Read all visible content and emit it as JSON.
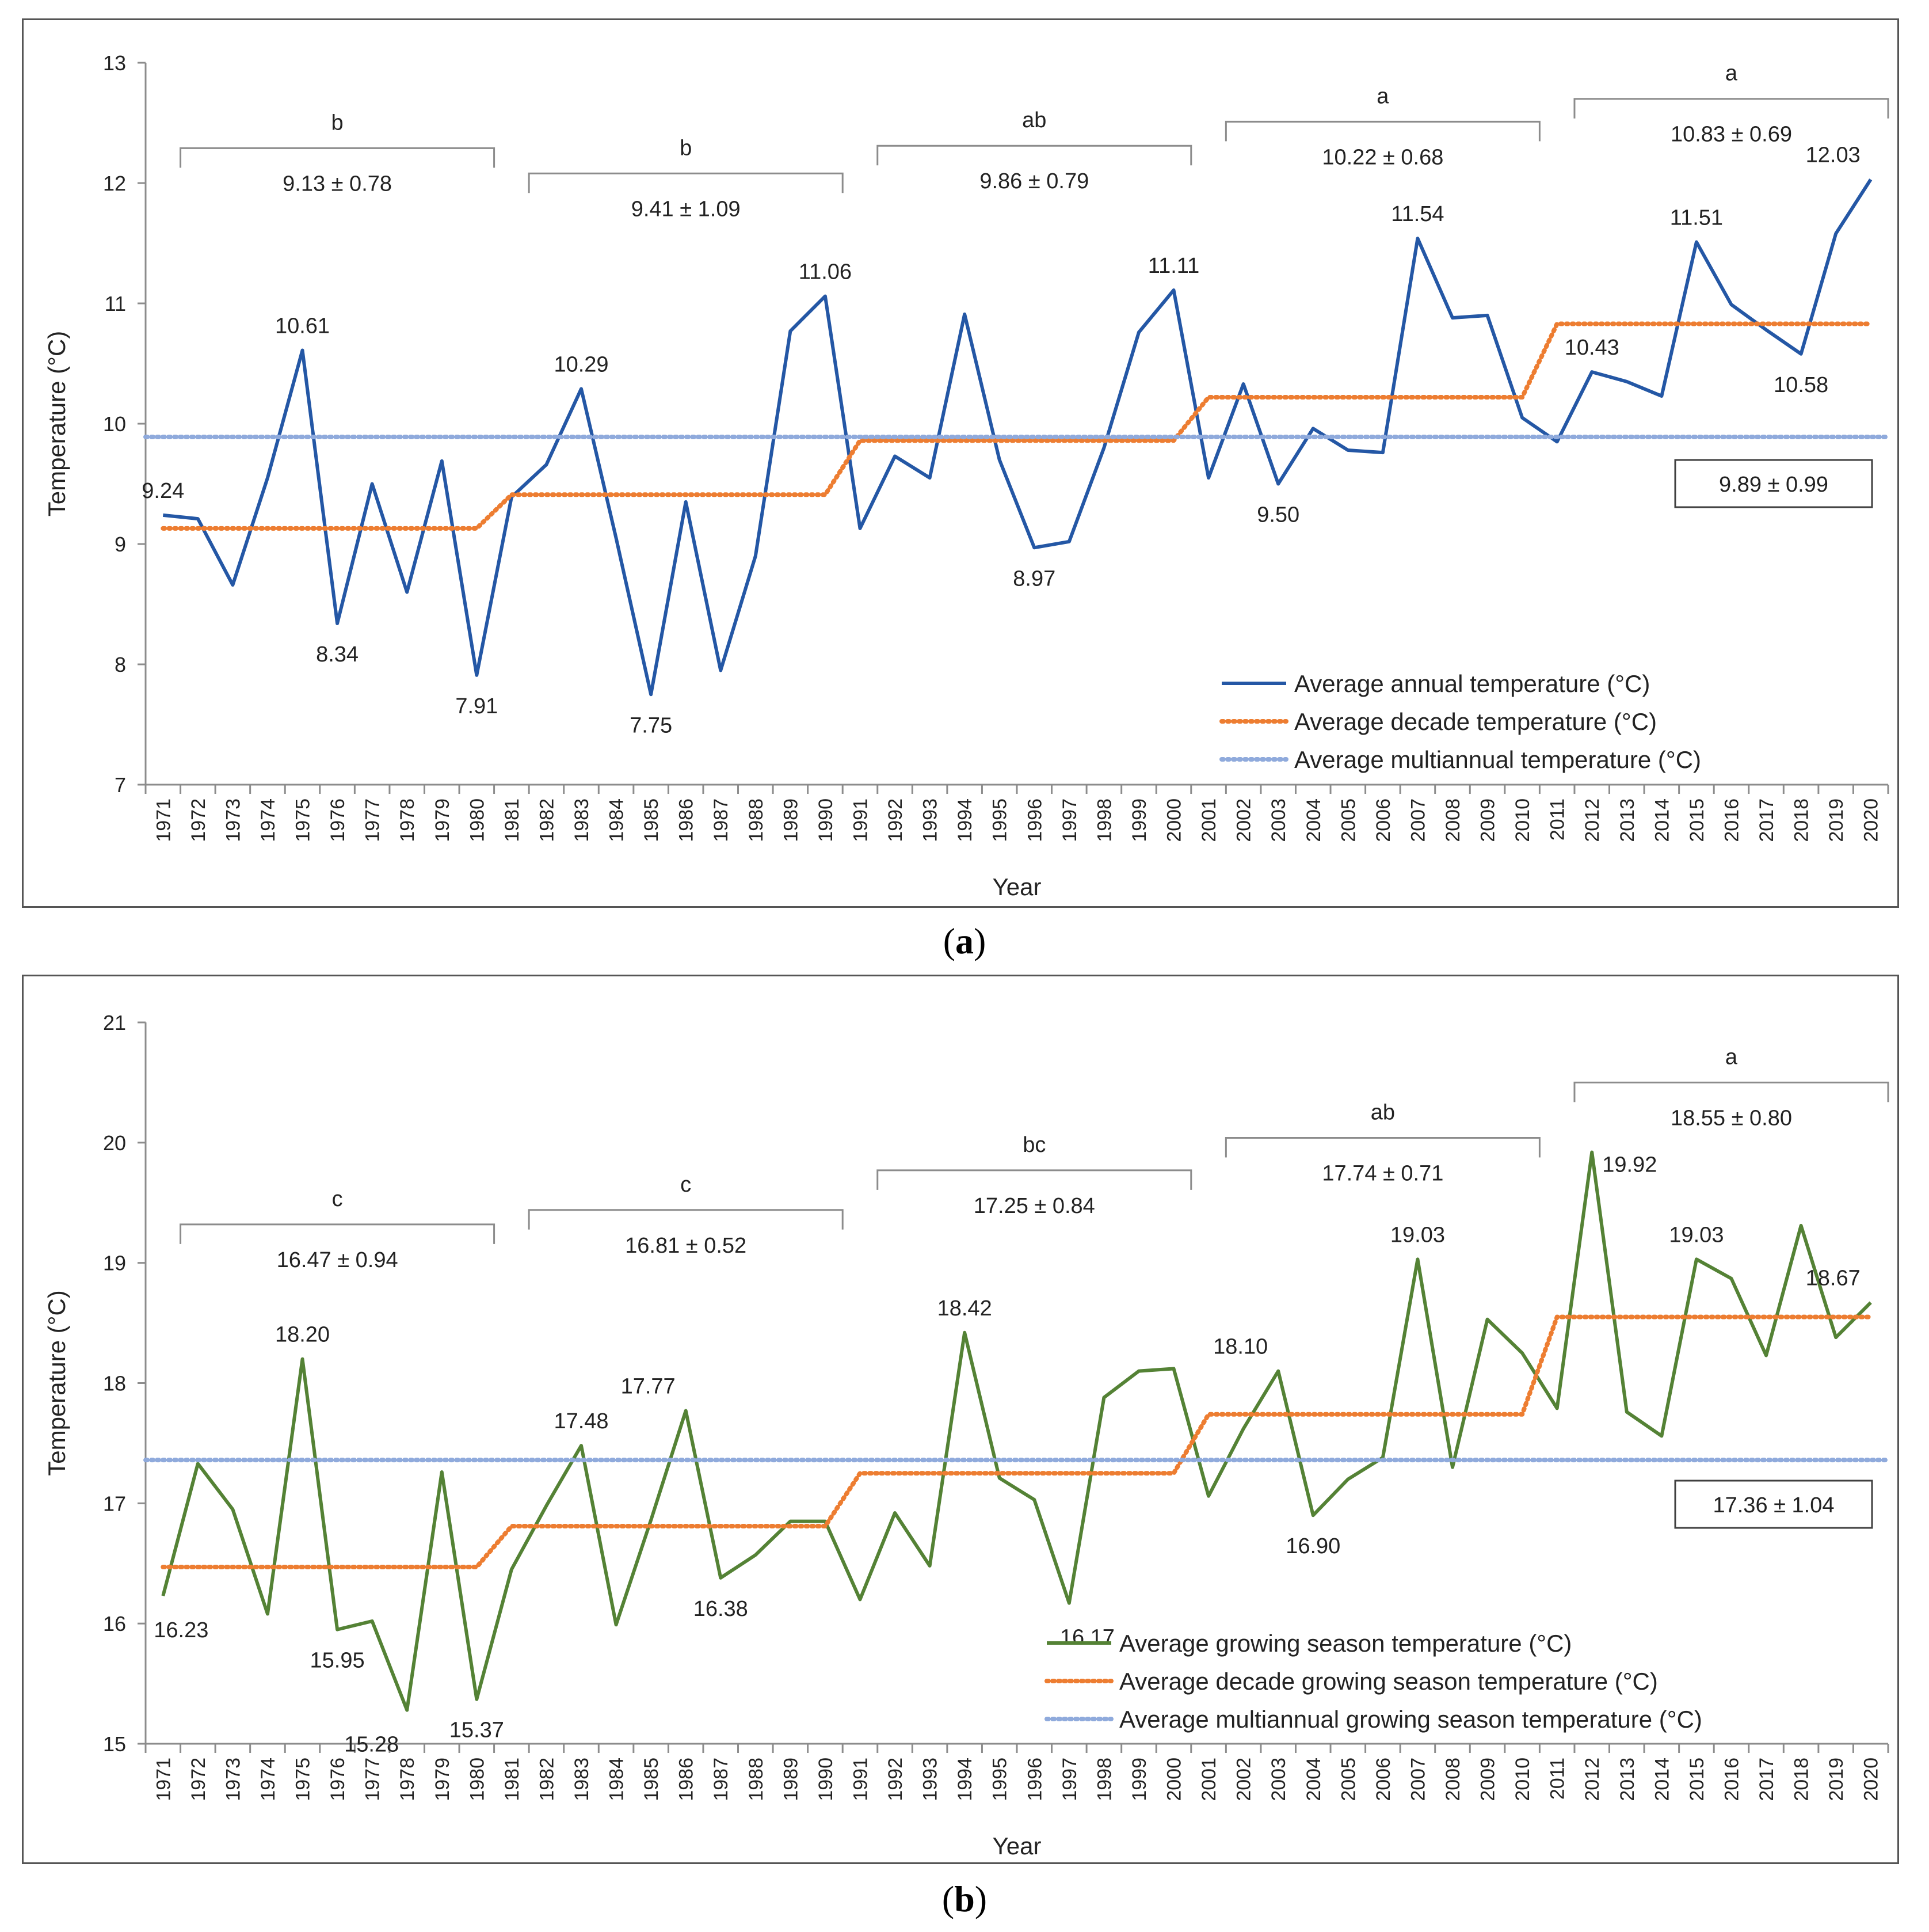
{
  "chart_data": [
    {
      "panel": "a",
      "type": "line",
      "caption_letter": "a",
      "xlabel": "Year",
      "ylabel": "Temperature (°C)",
      "ylim": [
        7,
        13
      ],
      "yticks": [
        7,
        8,
        9,
        10,
        11,
        12,
        13
      ],
      "categories": [
        "1971",
        "1972",
        "1973",
        "1974",
        "1975",
        "1976",
        "1977",
        "1978",
        "1979",
        "1980",
        "1981",
        "1982",
        "1983",
        "1984",
        "1985",
        "1986",
        "1987",
        "1988",
        "1989",
        "1990",
        "1991",
        "1992",
        "1993",
        "1994",
        "1995",
        "1996",
        "1997",
        "1998",
        "1999",
        "2000",
        "2001",
        "2002",
        "2003",
        "2004",
        "2005",
        "2006",
        "2007",
        "2008",
        "2009",
        "2010",
        "2011",
        "2012",
        "2013",
        "2014",
        "2015",
        "2016",
        "2017",
        "2018",
        "2019",
        "2020"
      ],
      "series": [
        {
          "name": "Average annual temperature (°C)",
          "style": "solid",
          "color": "#2457a5",
          "values": [
            9.24,
            9.21,
            8.66,
            9.55,
            10.61,
            8.34,
            9.5,
            8.6,
            9.69,
            7.91,
            9.39,
            9.66,
            10.29,
            9.05,
            7.75,
            9.35,
            7.95,
            8.9,
            10.77,
            11.06,
            9.13,
            9.73,
            9.55,
            10.91,
            9.7,
            8.97,
            9.02,
            9.8,
            10.76,
            11.11,
            9.55,
            10.33,
            9.5,
            9.96,
            9.78,
            9.76,
            11.54,
            10.88,
            10.9,
            10.05,
            9.85,
            10.43,
            10.35,
            10.23,
            11.51,
            10.99,
            10.78,
            10.58,
            11.58,
            12.03
          ]
        },
        {
          "name": "Average decade temperature (°C)",
          "style": "dotted",
          "color": "#ed7d31",
          "values": [
            9.13,
            9.13,
            9.13,
            9.13,
            9.13,
            9.13,
            9.13,
            9.13,
            9.13,
            9.13,
            9.41,
            9.41,
            9.41,
            9.41,
            9.41,
            9.41,
            9.41,
            9.41,
            9.41,
            9.41,
            9.86,
            9.86,
            9.86,
            9.86,
            9.86,
            9.86,
            9.86,
            9.86,
            9.86,
            9.86,
            10.22,
            10.22,
            10.22,
            10.22,
            10.22,
            10.22,
            10.22,
            10.22,
            10.22,
            10.22,
            10.83,
            10.83,
            10.83,
            10.83,
            10.83,
            10.83,
            10.83,
            10.83,
            10.83,
            10.83
          ]
        },
        {
          "name": "Average multiannual temperature (°C)",
          "style": "dotted",
          "color": "#8faadc",
          "constant": 9.89
        }
      ],
      "point_labels": [
        {
          "index": 0,
          "text": "9.24",
          "pos": "above"
        },
        {
          "index": 4,
          "text": "10.61",
          "pos": "above"
        },
        {
          "index": 5,
          "text": "8.34",
          "pos": "below"
        },
        {
          "index": 9,
          "text": "7.91",
          "pos": "below"
        },
        {
          "index": 12,
          "text": "10.29",
          "pos": "above"
        },
        {
          "index": 14,
          "text": "7.75",
          "pos": "below"
        },
        {
          "index": 19,
          "text": "11.06",
          "pos": "above"
        },
        {
          "index": 25,
          "text": "8.97",
          "pos": "below"
        },
        {
          "index": 29,
          "text": "11.11",
          "pos": "above"
        },
        {
          "index": 32,
          "text": "9.50",
          "pos": "below"
        },
        {
          "index": 36,
          "text": "11.54",
          "pos": "above"
        },
        {
          "index": 41,
          "text": "10.43",
          "pos": "above"
        },
        {
          "index": 44,
          "text": "11.51",
          "pos": "above"
        },
        {
          "index": 47,
          "text": "10.58",
          "pos": "below"
        },
        {
          "index": 49,
          "text": "12.03",
          "pos": "aboveleft"
        }
      ],
      "decades": [
        {
          "from": 1,
          "to": 10,
          "letter": "b",
          "stat": "9.13 ± 0.78",
          "y": 12.29
        },
        {
          "from": 11,
          "to": 20,
          "letter": "b",
          "stat": "9.41 ± 1.09",
          "y": 12.08
        },
        {
          "from": 21,
          "to": 30,
          "letter": "ab",
          "stat": "9.86 ± 0.79",
          "y": 12.31
        },
        {
          "from": 31,
          "to": 40,
          "letter": "a",
          "stat": "10.22 ± 0.68",
          "y": 12.51
        },
        {
          "from": 41,
          "to": 50,
          "letter": "a",
          "stat": "10.83 ± 0.69",
          "y": 12.7
        }
      ],
      "mean_box": "9.89 ± 0.99",
      "legend_position": "bottom-right"
    },
    {
      "panel": "b",
      "type": "line",
      "caption_letter": "b",
      "xlabel": "Year",
      "ylabel": "Temperature (°C)",
      "ylim": [
        15,
        21
      ],
      "yticks": [
        15,
        16,
        17,
        18,
        19,
        20,
        21
      ],
      "categories": [
        "1971",
        "1972",
        "1973",
        "1974",
        "1975",
        "1976",
        "1977",
        "1978",
        "1979",
        "1980",
        "1981",
        "1982",
        "1983",
        "1984",
        "1985",
        "1986",
        "1987",
        "1988",
        "1989",
        "1990",
        "1991",
        "1992",
        "1993",
        "1994",
        "1995",
        "1996",
        "1997",
        "1998",
        "1999",
        "2000",
        "2001",
        "2002",
        "2003",
        "2004",
        "2005",
        "2006",
        "2007",
        "2008",
        "2009",
        "2010",
        "2011",
        "2012",
        "2013",
        "2014",
        "2015",
        "2016",
        "2017",
        "2018",
        "2019",
        "2020"
      ],
      "series": [
        {
          "name": "Average growing season temperature (°C)",
          "style": "solid",
          "color": "#548235",
          "values": [
            16.23,
            17.33,
            16.95,
            16.08,
            18.2,
            15.95,
            16.02,
            15.28,
            17.26,
            15.37,
            16.45,
            16.98,
            17.48,
            15.99,
            16.86,
            17.77,
            16.38,
            16.57,
            16.85,
            16.85,
            16.2,
            16.92,
            16.48,
            18.42,
            17.21,
            17.03,
            16.17,
            17.88,
            18.1,
            18.12,
            17.06,
            17.62,
            18.1,
            16.9,
            17.2,
            17.38,
            19.03,
            17.3,
            18.53,
            18.25,
            17.79,
            19.92,
            17.76,
            17.56,
            19.03,
            18.87,
            18.23,
            19.31,
            18.38,
            18.67
          ]
        },
        {
          "name": "Average decade growing season temperature (°C)",
          "style": "dotted",
          "color": "#ed7d31",
          "values": [
            16.47,
            16.47,
            16.47,
            16.47,
            16.47,
            16.47,
            16.47,
            16.47,
            16.47,
            16.47,
            16.81,
            16.81,
            16.81,
            16.81,
            16.81,
            16.81,
            16.81,
            16.81,
            16.81,
            16.81,
            17.25,
            17.25,
            17.25,
            17.25,
            17.25,
            17.25,
            17.25,
            17.25,
            17.25,
            17.25,
            17.74,
            17.74,
            17.74,
            17.74,
            17.74,
            17.74,
            17.74,
            17.74,
            17.74,
            17.74,
            18.55,
            18.55,
            18.55,
            18.55,
            18.55,
            18.55,
            18.55,
            18.55,
            18.55,
            18.55
          ]
        },
        {
          "name": "Average multiannual growing season temperature (°C)",
          "style": "dotted",
          "color": "#8faadc",
          "constant": 17.36
        }
      ],
      "point_labels": [
        {
          "index": 0,
          "text": "16.23",
          "pos": "belowright"
        },
        {
          "index": 4,
          "text": "18.20",
          "pos": "above"
        },
        {
          "index": 5,
          "text": "15.95",
          "pos": "below"
        },
        {
          "index": 7,
          "text": "15.28",
          "pos": "belowleft"
        },
        {
          "index": 9,
          "text": "15.37",
          "pos": "below"
        },
        {
          "index": 12,
          "text": "17.48",
          "pos": "above"
        },
        {
          "index": 15,
          "text": "17.77",
          "pos": "aboveleft"
        },
        {
          "index": 16,
          "text": "16.38",
          "pos": "below"
        },
        {
          "index": 23,
          "text": "18.42",
          "pos": "above"
        },
        {
          "index": 26,
          "text": "16.17",
          "pos": "belowright"
        },
        {
          "index": 32,
          "text": "18.10",
          "pos": "aboveleft"
        },
        {
          "index": 33,
          "text": "16.90",
          "pos": "below"
        },
        {
          "index": 36,
          "text": "19.03",
          "pos": "above"
        },
        {
          "index": 41,
          "text": "19.92",
          "pos": "right"
        },
        {
          "index": 44,
          "text": "19.03",
          "pos": "above"
        },
        {
          "index": 49,
          "text": "18.67",
          "pos": "aboveleft"
        }
      ],
      "decades": [
        {
          "from": 1,
          "to": 10,
          "letter": "c",
          "stat": "16.47 ± 0.94",
          "y": 19.32
        },
        {
          "from": 11,
          "to": 20,
          "letter": "c",
          "stat": "16.81 ± 0.52",
          "y": 19.44
        },
        {
          "from": 21,
          "to": 30,
          "letter": "bc",
          "stat": "17.25 ± 0.84",
          "y": 19.77
        },
        {
          "from": 31,
          "to": 40,
          "letter": "ab",
          "stat": "17.74 ± 0.71",
          "y": 20.04
        },
        {
          "from": 41,
          "to": 50,
          "letter": "a",
          "stat": "18.55 ± 0.80",
          "y": 20.5
        }
      ],
      "mean_box": "17.36 ± 1.04",
      "legend_position": "bottom-right"
    }
  ]
}
